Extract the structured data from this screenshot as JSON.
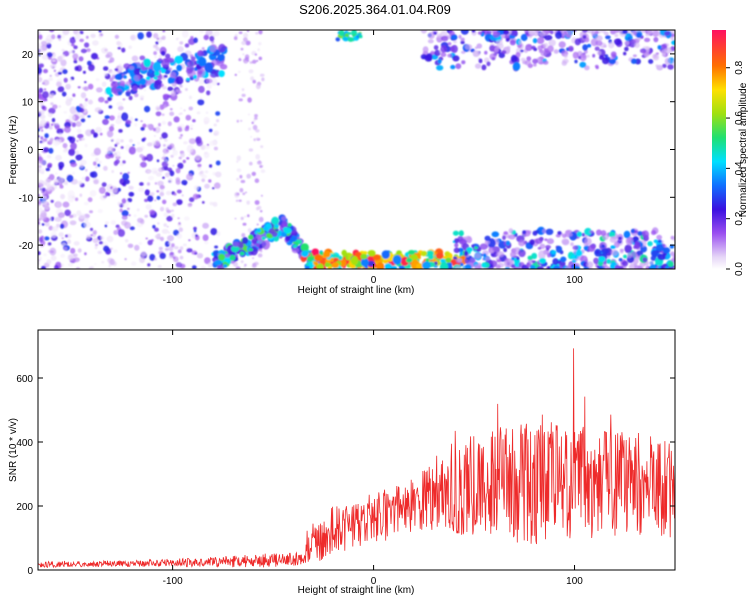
{
  "title": "S206.2025.364.01.04.R09",
  "colors": {
    "snr_line": "#ee2a2a",
    "axis": "#000000"
  },
  "chart_data": [
    {
      "type": "heatmap",
      "xlabel": "Height of straight line (km)",
      "ylabel": "Frequency (Hz)",
      "xlim": [
        -167,
        150
      ],
      "ylim": [
        -25,
        25
      ],
      "xticks": [
        -100,
        0,
        100
      ],
      "yticks": [
        -20,
        -10,
        0,
        10,
        20
      ],
      "colorbar": {
        "label": "Normalized spectral amplitude",
        "range": [
          0,
          0.95
        ],
        "ticks": [
          0.0,
          0.2,
          0.4,
          0.6,
          0.8
        ]
      },
      "features": [
        {
          "region": "left scatter",
          "x": [
            -167,
            -110
          ],
          "y": [
            -25,
            25
          ],
          "amplitude": 0.15
        },
        {
          "region": "upper-left band",
          "x": [
            -130,
            -77
          ],
          "y": [
            14,
            23
          ],
          "amplitude": 0.3
        },
        {
          "region": "lower arc",
          "x": [
            -80,
            -35
          ],
          "y": [
            -25,
            -15
          ],
          "amplitude": 0.4
        },
        {
          "region": "bottom band",
          "x": [
            -35,
            40
          ],
          "y": [
            -25,
            -22
          ],
          "amplitude": 0.9
        },
        {
          "region": "lower-right band",
          "x": [
            40,
            150
          ],
          "y": [
            -25,
            -18
          ],
          "amplitude": 0.3
        },
        {
          "region": "upper-right band",
          "x": [
            30,
            150
          ],
          "y": [
            18,
            25
          ],
          "amplitude": 0.25
        }
      ]
    },
    {
      "type": "line",
      "xlabel": "Height of straight line (km)",
      "ylabel": "SNR (10 * v/v)",
      "xlim": [
        -167,
        150
      ],
      "ylim": [
        0,
        750
      ],
      "xticks": [
        -100,
        0,
        100
      ],
      "yticks": [
        0,
        200,
        400,
        600
      ],
      "envelope": {
        "x": [
          -167,
          -120,
          -80,
          -60,
          -34,
          -33,
          -20,
          0,
          20,
          30,
          40,
          60,
          80,
          100,
          120,
          150
        ],
        "y_base": [
          18,
          20,
          25,
          28,
          35,
          75,
          120,
          160,
          200,
          235,
          260,
          270,
          280,
          280,
          270,
          250
        ],
        "y_spread": [
          10,
          10,
          15,
          22,
          20,
          60,
          80,
          80,
          90,
          110,
          150,
          180,
          200,
          180,
          170,
          160
        ]
      }
    }
  ]
}
